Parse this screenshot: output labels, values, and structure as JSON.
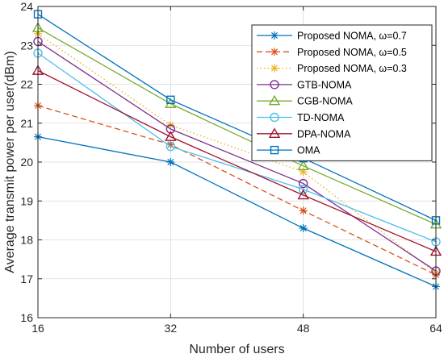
{
  "chart_data": {
    "type": "line",
    "title": "",
    "xlabel": "Number of users",
    "ylabel": "Average transmit power per user(dBm)",
    "x": [
      16,
      32,
      48,
      64
    ],
    "xticks": [
      "16",
      "32",
      "48",
      "64"
    ],
    "yticks": [
      "16",
      "17",
      "18",
      "19",
      "20",
      "21",
      "22",
      "23",
      "24"
    ],
    "xlim": [
      16,
      64
    ],
    "ylim": [
      16,
      24
    ],
    "grid": true,
    "legend_position": "top-right",
    "series": [
      {
        "name": "Proposed NOMA, ω=0.7",
        "values": [
          20.65,
          20.0,
          18.3,
          16.8
        ],
        "color": "#0072BD",
        "dash": "solid",
        "marker": "asterisk"
      },
      {
        "name": "Proposed NOMA, ω=0.5",
        "values": [
          21.45,
          20.45,
          18.75,
          17.1
        ],
        "color": "#D95319",
        "dash": "dashed",
        "marker": "asterisk"
      },
      {
        "name": "Proposed NOMA, ω=0.3",
        "values": [
          23.3,
          20.95,
          19.75,
          17.15
        ],
        "color": "#EDB120",
        "dash": "dotted",
        "marker": "asterisk"
      },
      {
        "name": "GTB-NOMA",
        "values": [
          23.1,
          20.85,
          19.45,
          17.2
        ],
        "color": "#7E2F8E",
        "dash": "solid",
        "marker": "circle"
      },
      {
        "name": "CGB-NOMA",
        "values": [
          23.45,
          21.5,
          19.9,
          18.4
        ],
        "color": "#77AC30",
        "dash": "solid",
        "marker": "triangle"
      },
      {
        "name": "TD-NOMA",
        "values": [
          22.8,
          20.4,
          19.3,
          17.95
        ],
        "color": "#4DBEEE",
        "dash": "solid",
        "marker": "circle"
      },
      {
        "name": "DPA-NOMA",
        "values": [
          22.35,
          20.65,
          19.15,
          17.7
        ],
        "color": "#A2142F",
        "dash": "solid",
        "marker": "triangle"
      },
      {
        "name": "OMA",
        "values": [
          23.8,
          21.6,
          20.1,
          18.5
        ],
        "color": "#0072BD",
        "dash": "solid",
        "marker": "square"
      }
    ]
  }
}
